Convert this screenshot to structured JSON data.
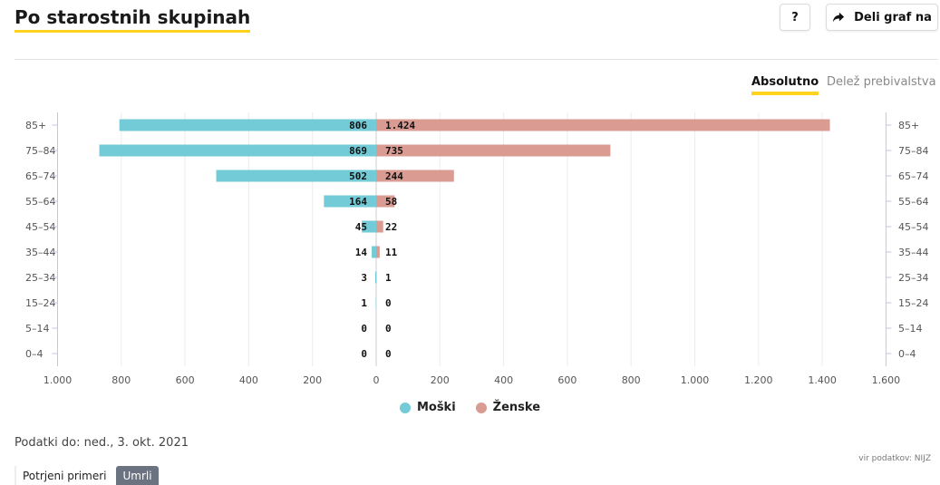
{
  "header": {
    "title": "Po starostnih skupinah",
    "help_label": "?",
    "share_label": "Deli graf na"
  },
  "toggle": {
    "active": "Absolutno",
    "inactive": "Delež prebivalstva"
  },
  "colors": {
    "male": "#72cbd6",
    "female": "#d99b92",
    "accent": "#ffd21f"
  },
  "chart_data": {
    "type": "bar",
    "orientation": "horizontal-population-pyramid",
    "categories": [
      "85+",
      "75–84",
      "65–74",
      "55–64",
      "45–54",
      "35–44",
      "25–34",
      "15–24",
      "5–14",
      "0–4"
    ],
    "series": [
      {
        "name": "Moški",
        "values": [
          806,
          869,
          502,
          164,
          45,
          14,
          3,
          1,
          0,
          0
        ],
        "labels": [
          "806",
          "869",
          "502",
          "164",
          "45",
          "14",
          "3",
          "1",
          "0",
          "0"
        ]
      },
      {
        "name": "Ženske",
        "values": [
          1424,
          735,
          244,
          58,
          22,
          11,
          1,
          0,
          0,
          0
        ],
        "labels": [
          "1.424",
          "735",
          "244",
          "58",
          "22",
          "11",
          "1",
          "0",
          "0",
          "0"
        ]
      }
    ],
    "xlim_left": [
      0,
      1000
    ],
    "xlim_right": [
      0,
      1600
    ],
    "xticks_left": [
      1000,
      800,
      600,
      400,
      200,
      0
    ],
    "xtick_labels_left": [
      "1.000",
      "800",
      "600",
      "400",
      "200",
      "0"
    ],
    "xticks_right": [
      200,
      400,
      600,
      800,
      1000,
      1200,
      1400,
      1600
    ],
    "xtick_labels_right": [
      "200",
      "400",
      "600",
      "800",
      "1.000",
      "1.200",
      "1.400",
      "1.600"
    ],
    "grid": true,
    "legend_position": "bottom"
  },
  "footer": {
    "updated": "Podatki do: ned., 3. okt. 2021",
    "source": "vir podatkov: NIJZ",
    "tabs": [
      "Potrjeni primeri",
      "Umrli"
    ],
    "active_tab": "Umrli"
  }
}
